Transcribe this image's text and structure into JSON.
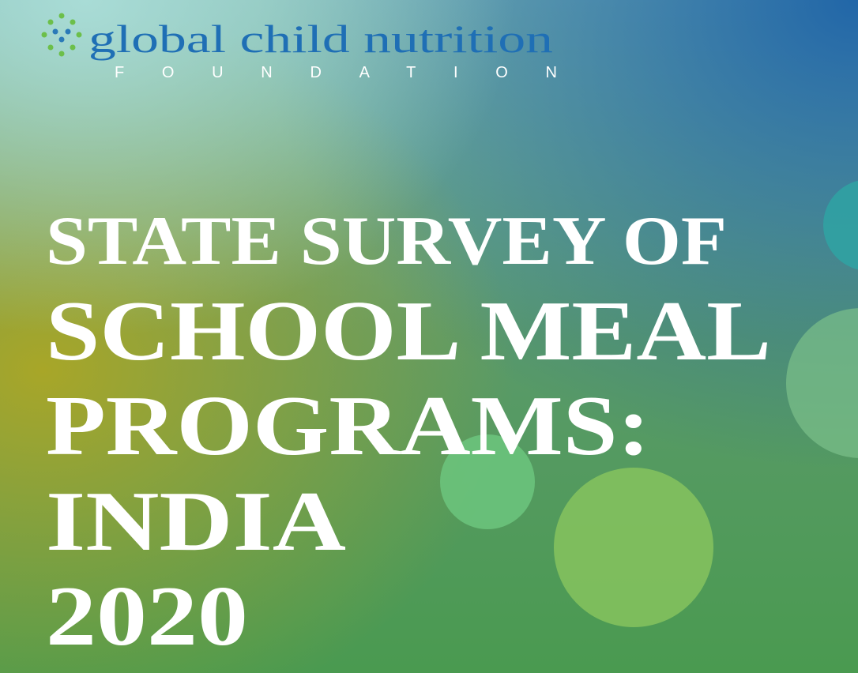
{
  "logo": {
    "name": "global child nutrition",
    "subtitle": "FOUNDATION"
  },
  "title": {
    "lines": [
      "STATE SURVEY OF",
      "SCHOOL MEAL",
      "PROGRAMS:",
      "INDIA",
      "2020"
    ]
  }
}
